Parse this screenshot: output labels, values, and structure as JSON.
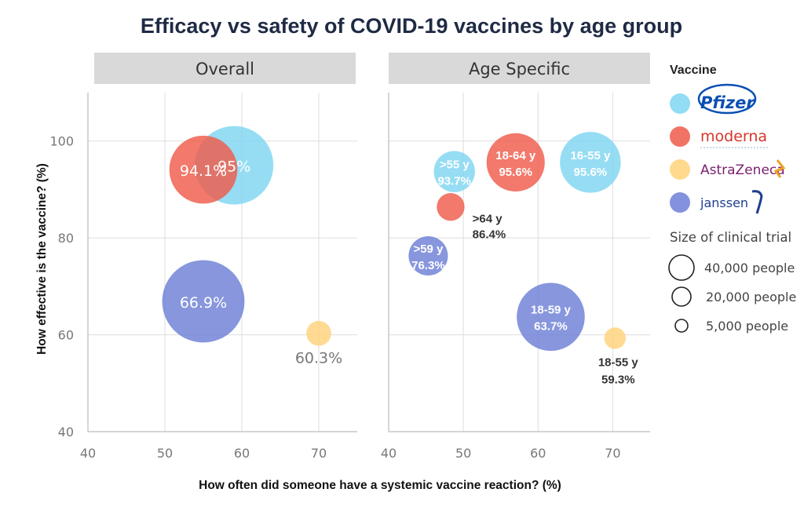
{
  "title": "Efficacy vs safety of COVID-19 vaccines by age group",
  "colors": {
    "pfizer": "#7fd6f2",
    "moderna": "#ef5b4b",
    "astrazeneca": "#ffd27a",
    "janssen": "#6c7fd6"
  },
  "chart_data": [
    {
      "type": "scatter",
      "panel": "Overall",
      "xlim": [
        40,
        75
      ],
      "ylim": [
        40,
        110
      ],
      "xticks": [
        40,
        50,
        60,
        70
      ],
      "yticks": [
        40,
        60,
        80,
        100
      ],
      "points": [
        {
          "vaccine": "pfizer",
          "x": 59,
          "y": 95,
          "size_people": 40000,
          "label": "95%"
        },
        {
          "vaccine": "moderna",
          "x": 55,
          "y": 94.1,
          "size_people": 30000,
          "label": "94.1%"
        },
        {
          "vaccine": "janssen",
          "x": 55,
          "y": 66.9,
          "size_people": 44000,
          "label": "66.9%"
        },
        {
          "vaccine": "astrazeneca",
          "x": 70,
          "y": 60.3,
          "size_people": 4000,
          "label": "60.3%"
        }
      ]
    },
    {
      "type": "scatter",
      "panel": "Age Specific",
      "xlim": [
        40,
        75
      ],
      "ylim": [
        40,
        110
      ],
      "xticks": [
        40,
        50,
        60,
        70
      ],
      "yticks": [
        40,
        60,
        80,
        100
      ],
      "points": [
        {
          "vaccine": "pfizer",
          "x": 48.8,
          "y": 93.7,
          "size_people": 11000,
          "label_line1": ">55 y",
          "label_line2": "93.7%"
        },
        {
          "vaccine": "pfizer",
          "x": 67,
          "y": 95.6,
          "size_people": 24000,
          "label_line1": "16-55 y",
          "label_line2": "95.6%"
        },
        {
          "vaccine": "moderna",
          "x": 57,
          "y": 95.6,
          "size_people": 22000,
          "label_line1": "18-64 y",
          "label_line2": "95.6%"
        },
        {
          "vaccine": "moderna",
          "x": 48.3,
          "y": 86.4,
          "size_people": 5000,
          "label_line1": ">64 y",
          "label_line2": "86.4%"
        },
        {
          "vaccine": "janssen",
          "x": 45.3,
          "y": 76.3,
          "size_people": 10000,
          "label_line1": ">59 y",
          "label_line2": "76.3%"
        },
        {
          "vaccine": "janssen",
          "x": 61.7,
          "y": 63.7,
          "size_people": 30000,
          "label_line1": "18-59 y",
          "label_line2": "63.7%"
        },
        {
          "vaccine": "astrazeneca",
          "x": 70.3,
          "y": 59.3,
          "size_people": 3000,
          "label_line1": "18-55 y",
          "label_line2": "59.3%"
        }
      ]
    }
  ],
  "axes": {
    "xlabel": "How often did someone have a systemic vaccine reaction? (%)",
    "ylabel": "How effective is the vaccine? (%)"
  },
  "legend": {
    "vaccine_title": "Vaccine",
    "vaccines": [
      {
        "key": "pfizer",
        "name": "Pfizer"
      },
      {
        "key": "moderna",
        "name": "moderna"
      },
      {
        "key": "astrazeneca",
        "name": "AstraZeneca"
      },
      {
        "key": "janssen",
        "name": "janssen"
      }
    ],
    "size_title": "Size of clinical trial",
    "sizes": [
      {
        "people": 40000,
        "label": "40,000 people"
      },
      {
        "people": 20000,
        "label": "20,000 people"
      },
      {
        "people": 5000,
        "label": "5,000 people"
      }
    ]
  }
}
